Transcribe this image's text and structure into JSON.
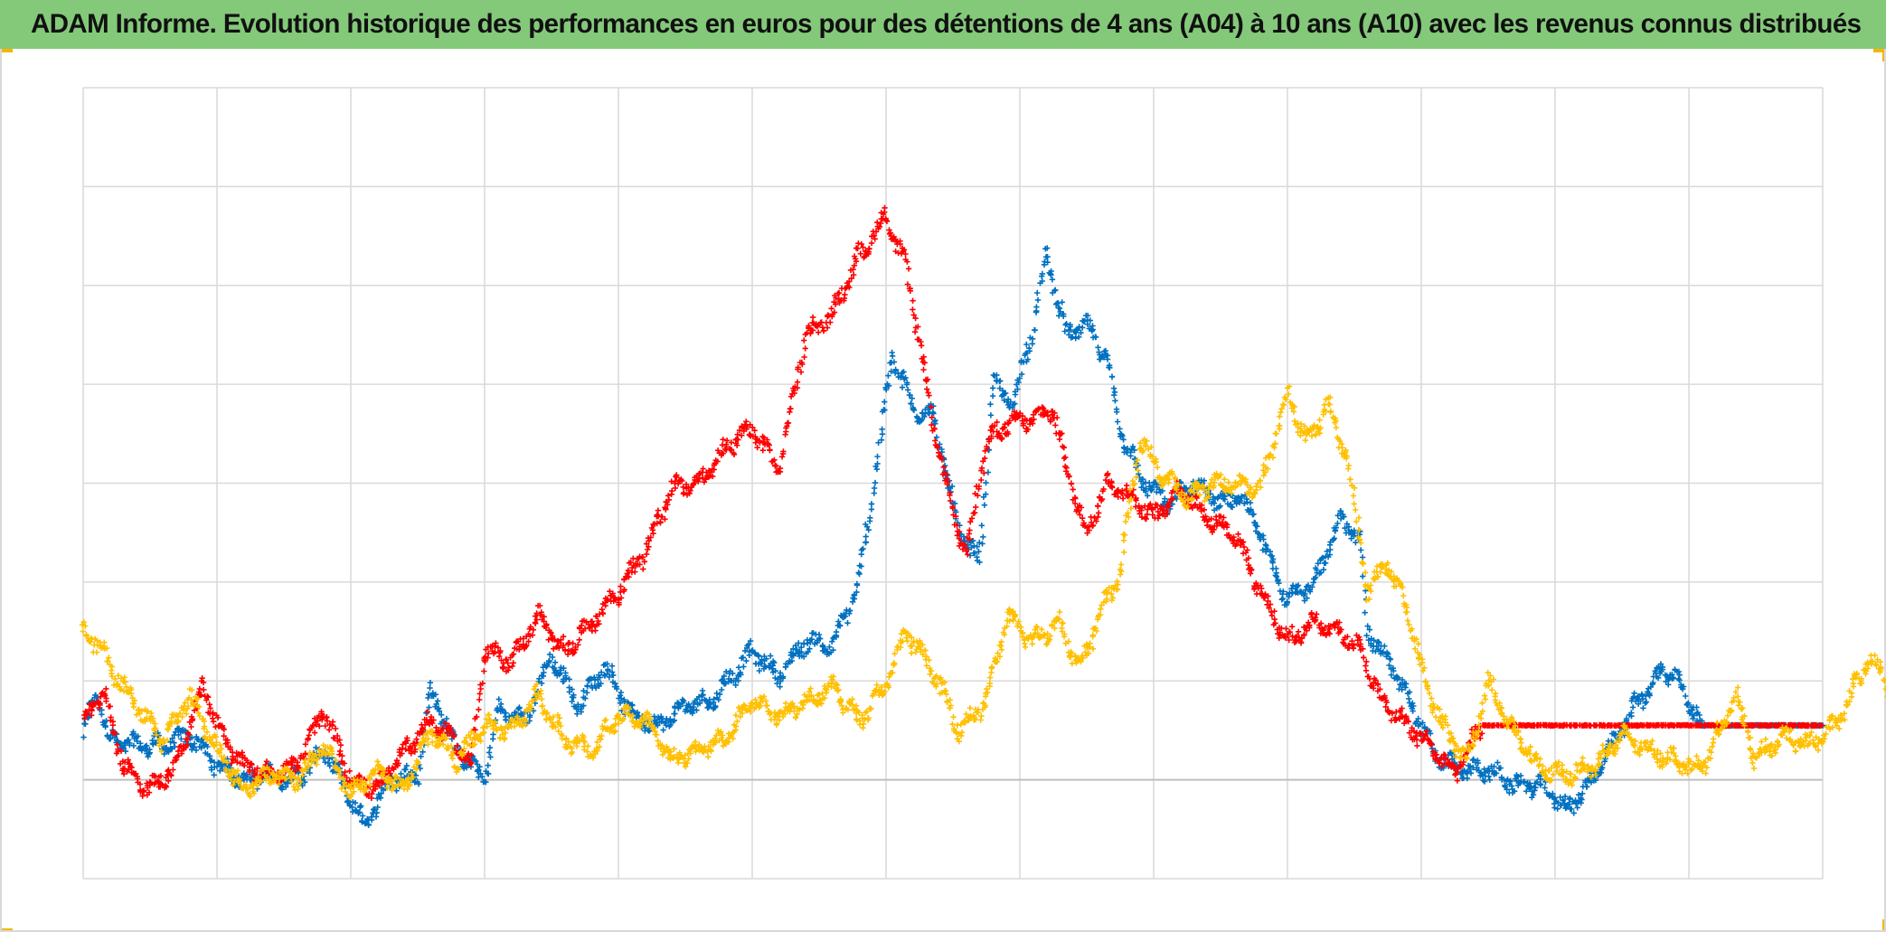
{
  "header": {
    "title": "ADAM Informe. Evolution historique des performances en euros pour des détentions de 4 ans (A04) à 10 ans (A10) avec les revenus connus distribués"
  },
  "colors": {
    "title_bg": "#84c97a",
    "grid": "#d9d9d9",
    "baseline": "#bfbfbf",
    "corner_accent": "#f2b705"
  },
  "chart_data": {
    "type": "scatter",
    "marker": "plus",
    "xlim": [
      0,
      13
    ],
    "ylim": [
      -1,
      7
    ],
    "x_grid_lines": 13,
    "y_grid_lines": 8,
    "baseline_y": 0,
    "grid": true,
    "legend": "none",
    "series": [
      {
        "color": "#0070c0",
        "points_spec": [
          [
            0.0,
            0.45
          ],
          [
            0.1,
            0.9
          ],
          [
            0.2,
            0.4
          ],
          [
            0.4,
            0.35
          ],
          [
            0.6,
            0.35
          ],
          [
            0.8,
            0.45
          ],
          [
            1.0,
            0.15
          ],
          [
            1.2,
            0.0
          ],
          [
            1.4,
            0.05
          ],
          [
            1.6,
            0.0
          ],
          [
            1.8,
            0.3
          ],
          [
            2.0,
            -0.2
          ],
          [
            2.1,
            -0.45
          ],
          [
            2.3,
            0.0
          ],
          [
            2.5,
            0.05
          ],
          [
            2.6,
            0.9
          ],
          [
            2.8,
            0.3
          ],
          [
            2.9,
            0.15
          ],
          [
            3.0,
            0.0
          ],
          [
            3.1,
            0.7
          ],
          [
            3.3,
            0.6
          ],
          [
            3.5,
            1.25
          ],
          [
            3.7,
            0.75
          ],
          [
            3.9,
            1.15
          ],
          [
            4.1,
            0.65
          ],
          [
            4.3,
            0.55
          ],
          [
            4.5,
            0.75
          ],
          [
            4.7,
            0.8
          ],
          [
            5.0,
            1.3
          ],
          [
            5.2,
            1.05
          ],
          [
            5.4,
            1.4
          ],
          [
            5.6,
            1.35
          ],
          [
            5.8,
            2.0
          ],
          [
            5.9,
            2.9
          ],
          [
            6.05,
            4.3
          ],
          [
            6.2,
            3.75
          ],
          [
            6.35,
            3.7
          ],
          [
            6.55,
            2.5
          ],
          [
            6.7,
            2.2
          ],
          [
            6.8,
            4.0
          ],
          [
            6.95,
            3.8
          ],
          [
            7.1,
            4.6
          ],
          [
            7.2,
            5.3
          ],
          [
            7.35,
            4.5
          ],
          [
            7.5,
            4.6
          ],
          [
            7.65,
            4.25
          ],
          [
            7.75,
            3.55
          ],
          [
            7.9,
            3.05
          ],
          [
            8.1,
            2.8
          ],
          [
            8.3,
            3.0
          ],
          [
            8.5,
            2.8
          ],
          [
            8.65,
            2.85
          ],
          [
            8.8,
            2.5
          ],
          [
            9.0,
            1.8
          ],
          [
            9.2,
            2.0
          ],
          [
            9.4,
            2.65
          ],
          [
            9.55,
            2.4
          ],
          [
            9.6,
            1.5
          ],
          [
            9.8,
            1.1
          ],
          [
            9.95,
            0.7
          ],
          [
            10.1,
            0.25
          ],
          [
            10.3,
            0.1
          ],
          [
            10.5,
            0.1
          ],
          [
            10.7,
            -0.05
          ],
          [
            10.9,
            -0.05
          ],
          [
            11.1,
            -0.3
          ],
          [
            11.3,
            0.05
          ],
          [
            11.6,
            0.75
          ],
          [
            11.8,
            1.1
          ],
          [
            11.9,
            1.05
          ],
          [
            12.1,
            0.55
          ],
          [
            12.4,
            0.55
          ],
          [
            12.7,
            0.55
          ],
          [
            13.0,
            0.55
          ]
        ]
      },
      {
        "color": "#ff0000",
        "points_spec": [
          [
            0.0,
            0.6
          ],
          [
            0.15,
            0.9
          ],
          [
            0.3,
            0.15
          ],
          [
            0.5,
            -0.1
          ],
          [
            0.7,
            0.15
          ],
          [
            0.9,
            0.95
          ],
          [
            1.05,
            0.4
          ],
          [
            1.2,
            0.15
          ],
          [
            1.4,
            0.05
          ],
          [
            1.6,
            0.15
          ],
          [
            1.8,
            0.7
          ],
          [
            2.0,
            0.0
          ],
          [
            2.2,
            -0.1
          ],
          [
            2.4,
            0.3
          ],
          [
            2.6,
            0.6
          ],
          [
            2.8,
            0.35
          ],
          [
            2.9,
            0.15
          ],
          [
            3.0,
            1.3
          ],
          [
            3.2,
            1.2
          ],
          [
            3.4,
            1.65
          ],
          [
            3.6,
            1.3
          ],
          [
            3.8,
            1.6
          ],
          [
            4.0,
            1.9
          ],
          [
            4.2,
            2.3
          ],
          [
            4.4,
            2.95
          ],
          [
            4.6,
            3.0
          ],
          [
            4.8,
            3.35
          ],
          [
            5.0,
            3.55
          ],
          [
            5.2,
            3.15
          ],
          [
            5.4,
            4.5
          ],
          [
            5.6,
            4.7
          ],
          [
            5.8,
            5.3
          ],
          [
            6.0,
            5.7
          ],
          [
            6.15,
            5.2
          ],
          [
            6.35,
            3.6
          ],
          [
            6.5,
            2.7
          ],
          [
            6.6,
            2.3
          ],
          [
            6.75,
            3.4
          ],
          [
            6.9,
            3.6
          ],
          [
            7.1,
            3.65
          ],
          [
            7.25,
            3.75
          ],
          [
            7.35,
            3.15
          ],
          [
            7.5,
            2.5
          ],
          [
            7.65,
            3.0
          ],
          [
            7.8,
            2.9
          ],
          [
            8.0,
            2.65
          ],
          [
            8.2,
            2.95
          ],
          [
            8.4,
            2.65
          ],
          [
            8.6,
            2.5
          ],
          [
            8.8,
            1.9
          ],
          [
            9.0,
            1.4
          ],
          [
            9.2,
            1.6
          ],
          [
            9.4,
            1.5
          ],
          [
            9.55,
            1.3
          ],
          [
            9.7,
            0.8
          ],
          [
            9.9,
            0.55
          ],
          [
            10.1,
            0.3
          ],
          [
            10.25,
            0.05
          ],
          [
            10.45,
            0.55
          ],
          [
            10.7,
            0.55
          ],
          [
            11.0,
            0.55
          ],
          [
            11.5,
            0.55
          ],
          [
            12.0,
            0.55
          ],
          [
            12.5,
            0.55
          ],
          [
            13.0,
            0.55
          ]
        ]
      },
      {
        "color": "#ffc000",
        "points_spec": [
          [
            0.0,
            1.5
          ],
          [
            0.1,
            1.4
          ],
          [
            0.25,
            1.05
          ],
          [
            0.4,
            0.75
          ],
          [
            0.6,
            0.4
          ],
          [
            0.8,
            0.85
          ],
          [
            1.0,
            0.3
          ],
          [
            1.2,
            -0.1
          ],
          [
            1.4,
            0.05
          ],
          [
            1.6,
            0.0
          ],
          [
            1.8,
            0.35
          ],
          [
            2.0,
            -0.15
          ],
          [
            2.2,
            0.1
          ],
          [
            2.4,
            -0.1
          ],
          [
            2.6,
            0.5
          ],
          [
            2.8,
            0.2
          ],
          [
            3.0,
            0.55
          ],
          [
            3.2,
            0.5
          ],
          [
            3.4,
            0.85
          ],
          [
            3.6,
            0.4
          ],
          [
            3.8,
            0.3
          ],
          [
            4.0,
            0.65
          ],
          [
            4.2,
            0.6
          ],
          [
            4.4,
            0.2
          ],
          [
            4.6,
            0.3
          ],
          [
            4.8,
            0.4
          ],
          [
            5.0,
            0.8
          ],
          [
            5.2,
            0.65
          ],
          [
            5.4,
            0.8
          ],
          [
            5.6,
            0.95
          ],
          [
            5.8,
            0.6
          ],
          [
            6.0,
            0.95
          ],
          [
            6.15,
            1.5
          ],
          [
            6.35,
            1.1
          ],
          [
            6.55,
            0.5
          ],
          [
            6.75,
            0.8
          ],
          [
            6.9,
            1.65
          ],
          [
            7.1,
            1.4
          ],
          [
            7.3,
            1.6
          ],
          [
            7.45,
            1.1
          ],
          [
            7.6,
            1.7
          ],
          [
            7.75,
            2.1
          ],
          [
            7.9,
            3.45
          ],
          [
            8.05,
            3.1
          ],
          [
            8.25,
            2.85
          ],
          [
            8.45,
            3.0
          ],
          [
            8.6,
            3.0
          ],
          [
            8.8,
            2.95
          ],
          [
            9.0,
            3.9
          ],
          [
            9.15,
            3.4
          ],
          [
            9.3,
            3.8
          ],
          [
            9.45,
            3.25
          ],
          [
            9.6,
            1.9
          ],
          [
            9.75,
            2.2
          ],
          [
            9.9,
            1.7
          ],
          [
            10.05,
            0.9
          ],
          [
            10.2,
            0.45
          ],
          [
            10.35,
            0.2
          ],
          [
            10.5,
            1.0
          ],
          [
            10.7,
            0.45
          ],
          [
            10.9,
            0.1
          ],
          [
            11.1,
            0.05
          ],
          [
            11.3,
            0.15
          ],
          [
            11.5,
            0.45
          ],
          [
            11.7,
            0.3
          ],
          [
            11.9,
            0.2
          ],
          [
            12.1,
            0.1
          ],
          [
            12.35,
            0.85
          ],
          [
            12.5,
            0.2
          ],
          [
            12.7,
            0.45
          ],
          [
            12.9,
            0.35
          ],
          [
            13.1,
            0.55
          ],
          [
            13.35,
            1.25
          ],
          [
            13.5,
            0.95
          ]
        ]
      }
    ]
  }
}
